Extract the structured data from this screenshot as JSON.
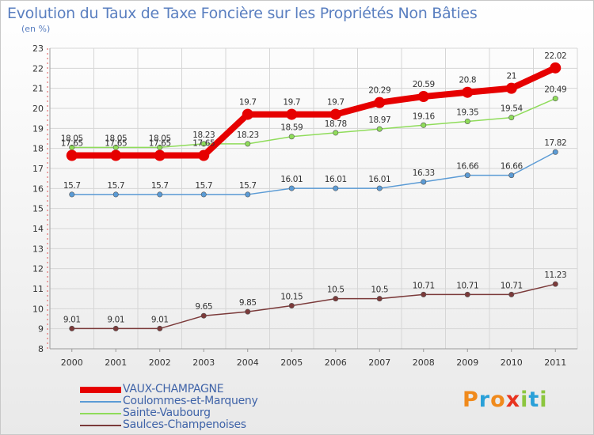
{
  "title": "Evolution du Taux de Taxe Foncière sur les Propriétés Non Bâties",
  "unit_label": "(en %)",
  "logo": {
    "text": "Proxiti",
    "letters": [
      {
        "ch": "P",
        "color": "#f08a1c"
      },
      {
        "ch": "r",
        "color": "#2aa0d8"
      },
      {
        "ch": "o",
        "color": "#f08a1c"
      },
      {
        "ch": "x",
        "color": "#e8331f"
      },
      {
        "ch": "i",
        "color": "#8cc63f"
      },
      {
        "ch": "t",
        "color": "#2aa0d8"
      },
      {
        "ch": "i",
        "color": "#8cc63f"
      }
    ]
  },
  "legend": [
    {
      "label": "VAUX-CHAMPAGNE",
      "color": "#e60000"
    },
    {
      "label": "Coulommes-et-Marqueny",
      "color": "#5b9bd5"
    },
    {
      "label": "Sainte-Vaubourg",
      "color": "#8fdc5a"
    },
    {
      "label": "Saulces-Champenoises",
      "color": "#7b3a3a"
    }
  ],
  "chart_data": {
    "type": "line",
    "title": "Evolution du Taux de Taxe Foncière sur les Propriétés Non Bâties",
    "ylabel": "(en %)",
    "xlabel": "",
    "ylim": [
      8,
      23
    ],
    "yticks": [
      "8",
      "9",
      "10",
      "11",
      "12",
      "13",
      "14",
      "15",
      "16",
      "17",
      "18",
      "19",
      "20",
      "21",
      "22",
      "23"
    ],
    "categories": [
      "2000",
      "2001",
      "2002",
      "2003",
      "2004",
      "2005",
      "2006",
      "2007",
      "2008",
      "2009",
      "2010",
      "2011"
    ],
    "series": [
      {
        "name": "VAUX-CHAMPAGNE",
        "color": "#e60000",
        "width": 8,
        "marker": 7,
        "values": [
          17.65,
          17.65,
          17.65,
          17.65,
          19.7,
          19.7,
          19.7,
          20.29,
          20.59,
          20.8,
          21,
          22.02
        ],
        "labels": [
          "17.65",
          "17.65",
          "17.65",
          "17.65",
          "19.7",
          "19.7",
          "19.7",
          "20.29",
          "20.59",
          "20.8",
          "21",
          "22.02"
        ]
      },
      {
        "name": "Coulommes-et-Marqueny",
        "color": "#5b9bd5",
        "width": 1.5,
        "marker": 3.2,
        "values": [
          15.7,
          15.7,
          15.7,
          15.7,
          15.7,
          16.01,
          16.01,
          16.01,
          16.33,
          16.66,
          16.66,
          17.82
        ],
        "labels": [
          "15.7",
          "15.7",
          "15.7",
          "15.7",
          "15.7",
          "16.01",
          "16.01",
          "16.01",
          "16.33",
          "16.66",
          "16.66",
          "17.82"
        ]
      },
      {
        "name": "Sainte-Vaubourg",
        "color": "#8fdc5a",
        "width": 1.5,
        "marker": 3.2,
        "values": [
          18.05,
          18.05,
          18.05,
          18.23,
          18.23,
          18.59,
          18.78,
          18.97,
          19.16,
          19.35,
          19.54,
          20.49
        ],
        "labels": [
          "18.05",
          "18.05",
          "18.05",
          "18.23",
          "18.23",
          "18.59",
          "18.78",
          "18.97",
          "19.16",
          "19.35",
          "19.54",
          "20.49"
        ]
      },
      {
        "name": "Saulces-Champenoises",
        "color": "#7b3a3a",
        "width": 1.5,
        "marker": 3.2,
        "values": [
          9.01,
          9.01,
          9.01,
          9.65,
          9.85,
          10.15,
          10.5,
          10.5,
          10.71,
          10.71,
          10.71,
          11.23
        ],
        "labels": [
          "9.01",
          "9.01",
          "9.01",
          "9.65",
          "9.85",
          "10.15",
          "10.5",
          "10.5",
          "10.71",
          "10.71",
          "10.71",
          "11.23"
        ]
      }
    ]
  }
}
